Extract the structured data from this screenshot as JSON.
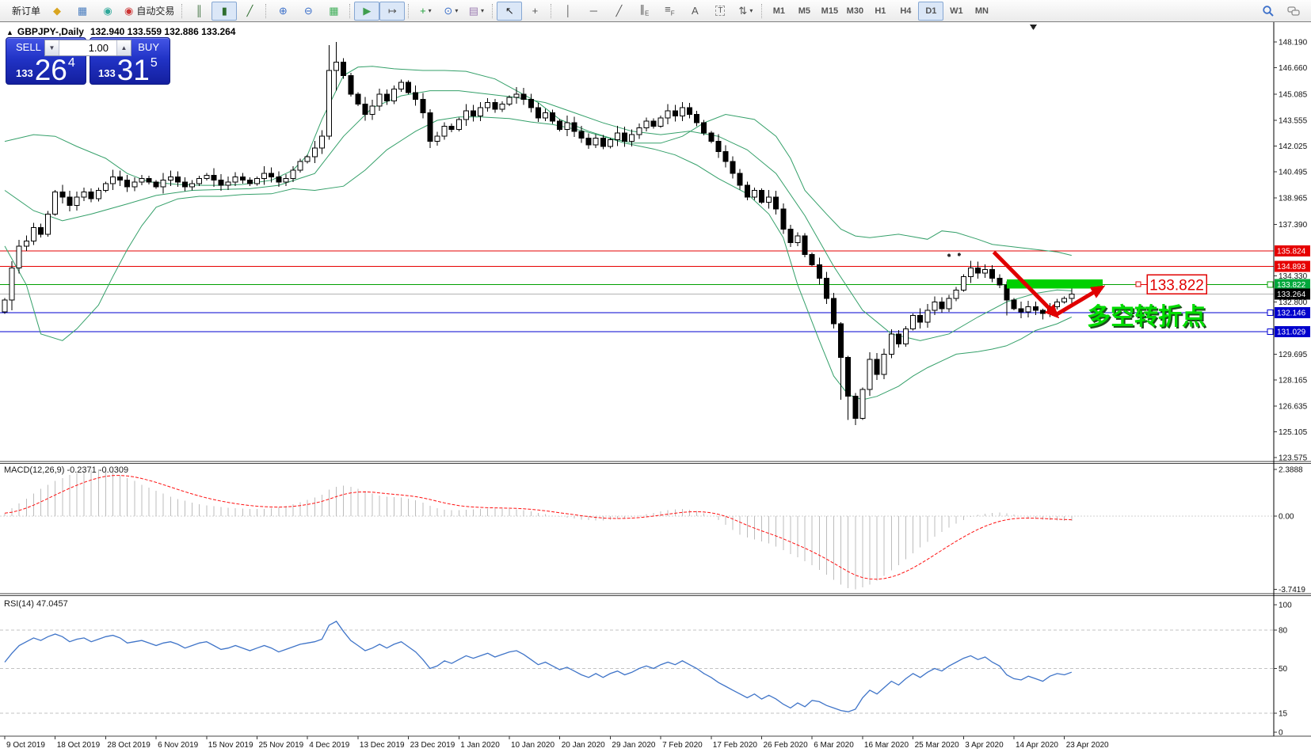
{
  "window": {
    "collapse_icon": "▲",
    "title_symbol": "GBPJPY-,Daily",
    "title_ohlc": "132.940 133.559 132.886 133.264"
  },
  "toolbar": {
    "buttons_left": [
      {
        "name": "new-order",
        "label": "新订单"
      },
      {
        "name": "market-watch"
      },
      {
        "name": "terminal"
      },
      {
        "name": "signals"
      },
      {
        "name": "auto-trading",
        "label": "自动交易"
      },
      {
        "sep": true
      },
      {
        "name": "bar-chart"
      },
      {
        "name": "candlestick-chart",
        "pressed": true
      },
      {
        "name": "line-chart"
      },
      {
        "sep": true
      },
      {
        "name": "zoom-in"
      },
      {
        "name": "zoom-out"
      },
      {
        "name": "tile-windows"
      },
      {
        "sep": true
      },
      {
        "name": "auto-scroll",
        "pressed": true
      },
      {
        "name": "chart-shift",
        "pressed": true
      },
      {
        "sep": true
      },
      {
        "name": "indicators",
        "dropdown": true
      },
      {
        "name": "periods",
        "dropdown": true
      },
      {
        "name": "templates",
        "dropdown": true
      },
      {
        "sep": true
      },
      {
        "name": "cursor",
        "pressed": true
      },
      {
        "name": "crosshair"
      },
      {
        "sep": true
      },
      {
        "name": "vertical-line"
      },
      {
        "name": "horizontal-line"
      },
      {
        "name": "trendline"
      },
      {
        "name": "equidistant-channel"
      },
      {
        "name": "fibonacci"
      },
      {
        "name": "text"
      },
      {
        "name": "text-label"
      },
      {
        "name": "arrows",
        "dropdown": true
      },
      {
        "sep": true
      }
    ],
    "timeframes": [
      "M1",
      "M5",
      "M15",
      "M30",
      "H1",
      "H4",
      "D1",
      "W1",
      "MN"
    ],
    "active_timeframe": "D1",
    "right_icons": [
      "search",
      "chat"
    ]
  },
  "one_click": {
    "sell_label": "SELL",
    "buy_label": "BUY",
    "volume": "1.00",
    "sell_price_prefix": "133",
    "sell_price_big": "26",
    "sell_price_sup": "4",
    "buy_price_prefix": "133",
    "buy_price_big": "31",
    "buy_price_sup": "5"
  },
  "indicators": {
    "macd_label": "MACD(12,26,9) -0.2371 -0.0309",
    "rsi_label": "RSI(14) 47.0457"
  },
  "axes": {
    "price_ticks": [
      "148.190",
      "146.660",
      "145.085",
      "143.555",
      "142.025",
      "140.495",
      "138.965",
      "137.390",
      "134.330",
      "132.800",
      "129.695",
      "128.165",
      "126.635",
      "125.105",
      "123.575"
    ],
    "price_line_labels": [
      {
        "value": "135.824",
        "bg": "#e60000"
      },
      {
        "value": "134.893",
        "bg": "#e60000"
      },
      {
        "value": "133.822",
        "bg": "#00a83c"
      },
      {
        "value": "133.264",
        "bg": "#000000"
      },
      {
        "value": "132.146",
        "bg": "#0000cd"
      },
      {
        "value": "131.029",
        "bg": "#0000cd"
      }
    ],
    "macd_ticks": [
      "2.3888",
      "0.00",
      "-3.7419"
    ],
    "rsi_ticks": [
      "100",
      "80",
      "50",
      "15",
      "0"
    ],
    "dates": [
      "9 Oct 2019",
      "18 Oct 2019",
      "28 Oct 2019",
      "6 Nov 2019",
      "15 Nov 2019",
      "25 Nov 2019",
      "4 Dec 2019",
      "13 Dec 2019",
      "23 Dec 2019",
      "1 Jan 2020",
      "10 Jan 2020",
      "20 Jan 2020",
      "29 Jan 2020",
      "7 Feb 2020",
      "17 Feb 2020",
      "26 Feb 2020",
      "6 Mar 2020",
      "16 Mar 2020",
      "25 Mar 2020",
      "3 Apr 2020",
      "14 Apr 2020",
      "23 Apr 2020"
    ]
  },
  "annotations": {
    "support_price_label": "133.822",
    "note_text": "多空转折点"
  },
  "chart_data": {
    "type": "candlestick",
    "symbol": "GBPJPY",
    "timeframe": "Daily",
    "ohlc_display": {
      "open": 132.94,
      "high": 133.559,
      "low": 132.886,
      "close": 133.264
    },
    "bid": 133.264,
    "ask": 133.315,
    "price_range": [
      123.575,
      148.19
    ],
    "levels": {
      "red_lines": [
        135.824,
        134.893
      ],
      "green_line": 133.822,
      "bid_line": 133.264,
      "blue_lines": [
        132.146,
        131.029
      ]
    },
    "closes": [
      132.9,
      134.8,
      136.1,
      136.4,
      137.2,
      136.8,
      138.0,
      139.3,
      139.0,
      138.5,
      139.0,
      139.3,
      138.9,
      139.4,
      139.8,
      140.2,
      140.0,
      139.6,
      139.9,
      140.1,
      139.9,
      139.6,
      140.0,
      140.2,
      139.9,
      139.6,
      139.8,
      140.1,
      140.3,
      140.0,
      139.7,
      139.9,
      140.2,
      140.0,
      139.8,
      140.1,
      140.4,
      140.2,
      139.9,
      140.1,
      140.6,
      141.1,
      141.4,
      141.9,
      142.6,
      146.5,
      147.0,
      146.2,
      145.1,
      144.5,
      143.9,
      144.4,
      145.1,
      144.7,
      145.4,
      145.8,
      145.2,
      144.8,
      144.0,
      142.3,
      142.6,
      143.2,
      143.0,
      143.6,
      144.1,
      143.8,
      144.3,
      144.6,
      144.2,
      144.5,
      144.9,
      145.1,
      144.8,
      144.3,
      143.7,
      144.0,
      143.5,
      143.0,
      143.4,
      142.9,
      142.5,
      142.1,
      142.5,
      142.0,
      142.4,
      142.8,
      142.3,
      142.7,
      143.1,
      143.5,
      143.2,
      143.7,
      144.1,
      143.8,
      144.3,
      143.9,
      143.4,
      142.8,
      142.3,
      141.7,
      141.1,
      140.4,
      139.7,
      139.0,
      139.4,
      138.7,
      139.0,
      138.3,
      137.1,
      136.3,
      136.7,
      135.6,
      135.0,
      134.2,
      133.0,
      131.5,
      129.5,
      127.2,
      125.9,
      127.6,
      129.4,
      128.5,
      129.7,
      130.9,
      130.3,
      131.2,
      132.0,
      131.6,
      132.3,
      132.8,
      132.4,
      133.0,
      133.5,
      134.3,
      134.8,
      134.5,
      134.7,
      134.2,
      133.8,
      132.9,
      132.4,
      132.2,
      132.5,
      132.3,
      132.1,
      132.5,
      132.8,
      133.0,
      133.26
    ],
    "range_overrides": {
      "1": [
        135.2,
        132.3
      ],
      "45": [
        148.0,
        142.4
      ],
      "46": [
        148.19,
        145.3
      ],
      "59": [
        144.2,
        141.9
      ],
      "116": [
        131.6,
        127.0
      ],
      "117": [
        129.6,
        125.8
      ],
      "118": [
        127.4,
        125.5
      ],
      "139": [
        134.0,
        132.0
      ],
      "144": [
        132.4,
        131.75
      ]
    },
    "bollinger_upper": [
      [
        0,
        142.3
      ],
      [
        4,
        142.7
      ],
      [
        7,
        142.6
      ],
      [
        10,
        142.0
      ],
      [
        14,
        141.3
      ],
      [
        17,
        140.4
      ],
      [
        20,
        139.9
      ],
      [
        24,
        139.75
      ],
      [
        27,
        139.7
      ],
      [
        30,
        139.7
      ],
      [
        33,
        139.75
      ],
      [
        37,
        140.0
      ],
      [
        40,
        140.6
      ],
      [
        42,
        141.5
      ],
      [
        44,
        143.6
      ],
      [
        47,
        146.2
      ],
      [
        49,
        146.7
      ],
      [
        51,
        146.75
      ],
      [
        54,
        146.6
      ],
      [
        58,
        146.5
      ],
      [
        61,
        146.5
      ],
      [
        64,
        146.45
      ],
      [
        68,
        146.0
      ],
      [
        71,
        145.3
      ],
      [
        74,
        144.6
      ],
      [
        77,
        143.6
      ],
      [
        81,
        142.9
      ],
      [
        84,
        142.5
      ],
      [
        87,
        142.2
      ],
      [
        91,
        142.2
      ],
      [
        94,
        142.6
      ],
      [
        97,
        143.4
      ],
      [
        100,
        143.9
      ],
      [
        104,
        143.6
      ],
      [
        107,
        142.6
      ],
      [
        109,
        141.3
      ],
      [
        111,
        139.4
      ],
      [
        114,
        138.0
      ],
      [
        116,
        137.1
      ],
      [
        118,
        136.7
      ],
      [
        120,
        136.6
      ],
      [
        124,
        136.8
      ],
      [
        128,
        136.5
      ],
      [
        130,
        137.0
      ],
      [
        132,
        136.9
      ],
      [
        135,
        136.5
      ],
      [
        137,
        136.2
      ],
      [
        139,
        136.1
      ],
      [
        141,
        136.0
      ],
      [
        143,
        135.9
      ],
      [
        146,
        135.75
      ],
      [
        148,
        135.55
      ]
    ],
    "bollinger_middle": [
      [
        0,
        139.4
      ],
      [
        4,
        138.2
      ],
      [
        8,
        137.6
      ],
      [
        12,
        138.0
      ],
      [
        17,
        138.6
      ],
      [
        21,
        139.1
      ],
      [
        26,
        139.4
      ],
      [
        30,
        139.45
      ],
      [
        34,
        139.5
      ],
      [
        38,
        139.7
      ],
      [
        43,
        140.4
      ],
      [
        47,
        142.6
      ],
      [
        51,
        144.3
      ],
      [
        55,
        145.0
      ],
      [
        59,
        145.3
      ],
      [
        63,
        145.3
      ],
      [
        67,
        145.1
      ],
      [
        71,
        144.9
      ],
      [
        75,
        144.6
      ],
      [
        79,
        144.0
      ],
      [
        83,
        143.4
      ],
      [
        87,
        142.9
      ],
      [
        91,
        142.7
      ],
      [
        95,
        142.9
      ],
      [
        99,
        142.6
      ],
      [
        103,
        141.8
      ],
      [
        107,
        140.4
      ],
      [
        111,
        137.9
      ],
      [
        115,
        134.9
      ],
      [
        119,
        132.3
      ],
      [
        123,
        130.9
      ],
      [
        127,
        130.5
      ],
      [
        131,
        130.9
      ],
      [
        135,
        131.9
      ],
      [
        139,
        132.8
      ],
      [
        143,
        133.3
      ],
      [
        146,
        133.5
      ],
      [
        148,
        133.45
      ]
    ],
    "bollinger_lower": [
      [
        0,
        136.1
      ],
      [
        3,
        133.8
      ],
      [
        5,
        130.9
      ],
      [
        8,
        130.5
      ],
      [
        10,
        131.2
      ],
      [
        13,
        132.6
      ],
      [
        15,
        134.3
      ],
      [
        17,
        135.9
      ],
      [
        19,
        137.3
      ],
      [
        21,
        138.4
      ],
      [
        24,
        138.9
      ],
      [
        27,
        139.05
      ],
      [
        30,
        139.05
      ],
      [
        33,
        139.15
      ],
      [
        37,
        139.2
      ],
      [
        40,
        139.5
      ],
      [
        43,
        139.4
      ],
      [
        47,
        139.65
      ],
      [
        50,
        140.6
      ],
      [
        53,
        141.8
      ],
      [
        57,
        142.9
      ],
      [
        60,
        143.55
      ],
      [
        63,
        143.75
      ],
      [
        66,
        143.75
      ],
      [
        70,
        143.65
      ],
      [
        73,
        143.45
      ],
      [
        76,
        143.3
      ],
      [
        80,
        142.95
      ],
      [
        83,
        142.6
      ],
      [
        86,
        142.2
      ],
      [
        90,
        141.85
      ],
      [
        93,
        141.5
      ],
      [
        96,
        140.9
      ],
      [
        99,
        140.1
      ],
      [
        103,
        139.2
      ],
      [
        106,
        138.0
      ],
      [
        108,
        136.6
      ],
      [
        110,
        133.8
      ],
      [
        113,
        130.5
      ],
      [
        115,
        128.4
      ],
      [
        117,
        127.3
      ],
      [
        119,
        127.0
      ],
      [
        121,
        127.2
      ],
      [
        124,
        127.8
      ],
      [
        126,
        128.4
      ],
      [
        128,
        128.9
      ],
      [
        130,
        129.3
      ],
      [
        132,
        129.7
      ],
      [
        135,
        129.85
      ],
      [
        137,
        130.0
      ],
      [
        139,
        130.2
      ],
      [
        141,
        130.6
      ],
      [
        143,
        131.1
      ],
      [
        146,
        131.5
      ],
      [
        148,
        131.9
      ]
    ],
    "macd": {
      "current": -0.2371,
      "signal_current": -0.0309,
      "range": [
        -3.7419,
        2.3888
      ],
      "values": [
        0.15,
        0.4,
        0.65,
        0.9,
        1.15,
        1.4,
        1.6,
        1.8,
        1.95,
        2.1,
        2.2,
        2.3,
        2.35,
        2.39,
        2.35,
        2.25,
        2.1,
        1.95,
        1.8,
        1.6,
        1.45,
        1.3,
        1.15,
        1.0,
        0.88,
        0.78,
        0.68,
        0.6,
        0.54,
        0.5,
        0.46,
        0.43,
        0.4,
        0.38,
        0.37,
        0.36,
        0.37,
        0.4,
        0.45,
        0.52,
        0.6,
        0.7,
        0.82,
        0.95,
        1.1,
        1.35,
        1.5,
        1.55,
        1.5,
        1.4,
        1.28,
        1.15,
        1.05,
        1.0,
        0.97,
        0.95,
        0.9,
        0.8,
        0.68,
        0.52,
        0.4,
        0.33,
        0.3,
        0.3,
        0.32,
        0.34,
        0.36,
        0.38,
        0.39,
        0.38,
        0.37,
        0.35,
        0.3,
        0.24,
        0.17,
        0.1,
        0.03,
        -0.03,
        -0.08,
        -0.13,
        -0.18,
        -0.21,
        -0.23,
        -0.22,
        -0.19,
        -0.15,
        -0.1,
        -0.04,
        0.03,
        0.1,
        0.17,
        0.24,
        0.3,
        0.34,
        0.36,
        0.33,
        0.26,
        0.15,
        0.0,
        -0.2,
        -0.45,
        -0.7,
        -0.95,
        -1.1,
        -1.2,
        -1.3,
        -1.4,
        -1.55,
        -1.75,
        -1.95,
        -2.1,
        -2.3,
        -2.5,
        -2.75,
        -3.0,
        -3.25,
        -3.5,
        -3.68,
        -3.74,
        -3.65,
        -3.5,
        -3.3,
        -3.05,
        -2.78,
        -2.5,
        -2.2,
        -1.9,
        -1.6,
        -1.32,
        -1.05,
        -0.8,
        -0.58,
        -0.38,
        -0.2,
        -0.05,
        0.06,
        0.13,
        0.17,
        0.18,
        0.14,
        0.08,
        0.0,
        -0.08,
        -0.14,
        -0.18,
        -0.21,
        -0.23,
        -0.24,
        -0.2371
      ]
    },
    "rsi": {
      "current": 47.0457,
      "levels": [
        80,
        50,
        15
      ],
      "values": [
        55,
        62,
        68,
        71,
        74,
        72,
        75,
        77,
        75,
        71,
        73,
        74,
        71,
        73,
        75,
        76,
        74,
        70,
        71,
        72,
        70,
        68,
        70,
        71,
        69,
        66,
        68,
        70,
        71,
        68,
        65,
        66,
        68,
        66,
        64,
        66,
        68,
        66,
        63,
        65,
        67,
        69,
        70,
        71,
        73,
        84,
        87,
        79,
        72,
        68,
        64,
        66,
        69,
        66,
        69,
        71,
        67,
        63,
        57,
        50,
        52,
        56,
        54,
        57,
        60,
        58,
        60,
        62,
        59,
        61,
        63,
        64,
        61,
        57,
        53,
        55,
        52,
        49,
        51,
        48,
        45,
        43,
        46,
        43,
        46,
        48,
        45,
        47,
        50,
        52,
        50,
        53,
        55,
        53,
        56,
        53,
        50,
        46,
        43,
        39,
        36,
        33,
        30,
        27,
        30,
        26,
        29,
        26,
        22,
        19,
        23,
        20,
        25,
        24,
        21,
        19,
        17,
        16,
        18,
        27,
        33,
        30,
        35,
        40,
        37,
        42,
        46,
        43,
        47,
        50,
        48,
        52,
        55,
        58,
        60,
        57,
        59,
        55,
        52,
        45,
        42,
        41,
        44,
        42,
        40,
        44,
        46,
        45,
        47.05
      ]
    },
    "drawn_objects": {
      "support_band": {
        "price_top": 134.12,
        "price_bottom": 133.58,
        "from_bar": 139,
        "to_bar": 152.3
      },
      "arrow_down": {
        "from_bar": 137.2,
        "from_price": 135.75,
        "to_bar": 145.9,
        "to_price": 131.98
      },
      "arrow_up": {
        "from_bar": 145.9,
        "from_price": 132.05,
        "to_bar": 152.2,
        "to_price": 133.65
      },
      "fractal_dots": [
        {
          "bar": 131,
          "price": 135.55
        },
        {
          "bar": 132.4,
          "price": 135.6
        }
      ]
    }
  }
}
